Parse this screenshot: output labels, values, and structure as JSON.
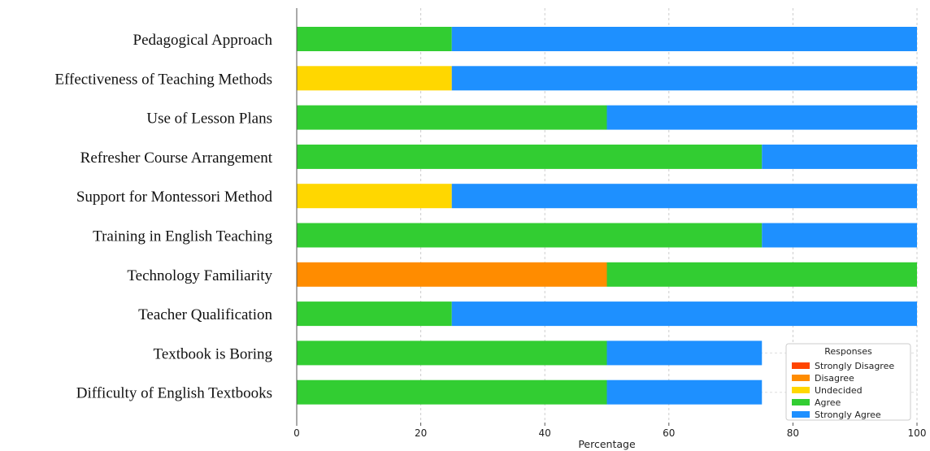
{
  "chart_data": {
    "type": "bar",
    "orientation": "horizontal",
    "stacked": true,
    "title": "",
    "xlabel": "Percentage",
    "ylabel": "",
    "xlim": [
      0,
      100
    ],
    "xticks": [
      0,
      20,
      40,
      60,
      80,
      100
    ],
    "grid": true,
    "categories": [
      "Pedagogical Approach",
      "Effectiveness of Teaching Methods",
      "Use of Lesson Plans",
      "Refresher Course Arrangement",
      "Support for Montessori Method",
      "Training in English Teaching",
      "Technology Familiarity",
      "Teacher Qualification",
      "Textbook is Boring",
      "Difficulty of English Textbooks"
    ],
    "series": [
      {
        "name": "Strongly Disagree",
        "color": "#ff4500",
        "values": [
          0,
          0,
          0,
          0,
          0,
          0,
          0,
          0,
          0,
          0
        ]
      },
      {
        "name": "Disagree",
        "color": "#ff8c00",
        "values": [
          0,
          0,
          0,
          0,
          0,
          0,
          50,
          0,
          0,
          0
        ]
      },
      {
        "name": "Undecided",
        "color": "#ffd700",
        "values": [
          0,
          25,
          0,
          0,
          25,
          0,
          0,
          0,
          0,
          0
        ]
      },
      {
        "name": "Agree",
        "color": "#32cd32",
        "values": [
          25,
          0,
          50,
          75,
          0,
          75,
          50,
          25,
          50,
          50
        ]
      },
      {
        "name": "Strongly Agree",
        "color": "#1e90ff",
        "values": [
          75,
          75,
          50,
          25,
          75,
          25,
          0,
          75,
          25,
          25
        ]
      }
    ],
    "legend": {
      "title": "Responses",
      "position": "lower-right"
    }
  }
}
